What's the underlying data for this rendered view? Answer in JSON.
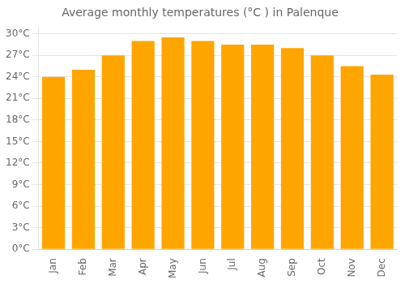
{
  "chart_data": {
    "type": "bar",
    "title": "Average monthly temperatures (°C ) in Palenque",
    "categories": [
      "Jan",
      "Feb",
      "Mar",
      "Apr",
      "May",
      "Jun",
      "Jul",
      "Aug",
      "Sep",
      "Oct",
      "Nov",
      "Dec"
    ],
    "values": [
      24.0,
      25.0,
      27.0,
      29.0,
      29.5,
      29.0,
      28.5,
      28.5,
      28.0,
      27.0,
      25.5,
      24.3
    ],
    "color": "#FFA500",
    "ylim": [
      0,
      31
    ],
    "yticks": [
      {
        "value": 0,
        "label": "0°C"
      },
      {
        "value": 3,
        "label": "3°C"
      },
      {
        "value": 6,
        "label": "6°C"
      },
      {
        "value": 9,
        "label": "9°C"
      },
      {
        "value": 12,
        "label": "12°C"
      },
      {
        "value": 15,
        "label": "15°C"
      },
      {
        "value": 18,
        "label": "18°C"
      },
      {
        "value": 21,
        "label": "21°C"
      },
      {
        "value": 24,
        "label": "24°C"
      },
      {
        "value": 27,
        "label": "27°C"
      },
      {
        "value": 30,
        "label": "30°C"
      }
    ],
    "grid": true
  }
}
